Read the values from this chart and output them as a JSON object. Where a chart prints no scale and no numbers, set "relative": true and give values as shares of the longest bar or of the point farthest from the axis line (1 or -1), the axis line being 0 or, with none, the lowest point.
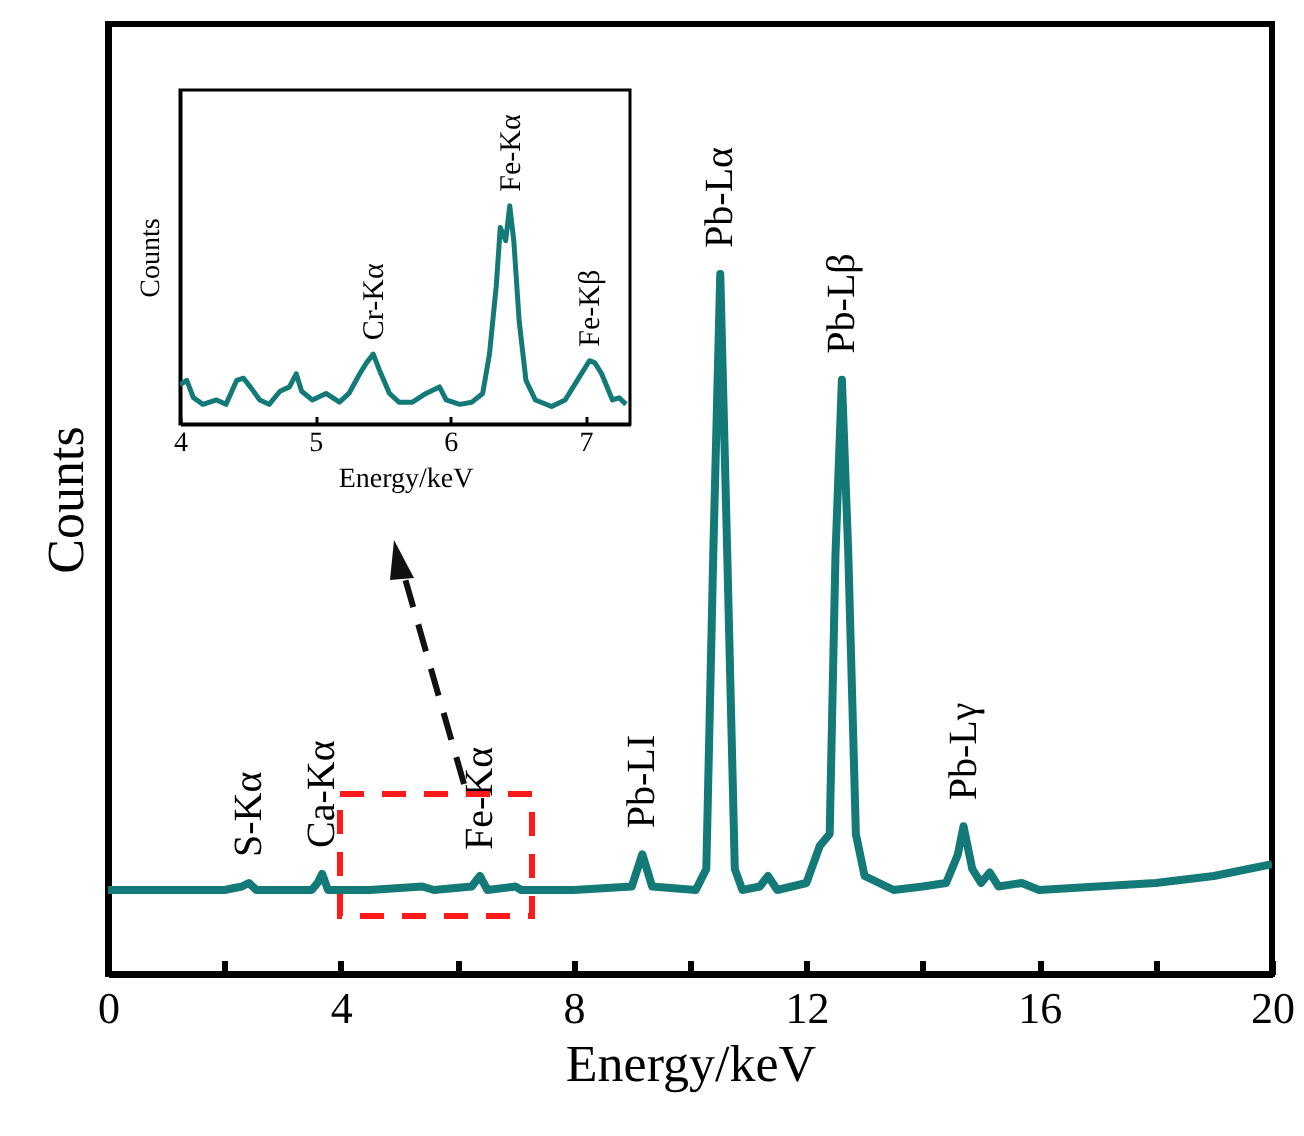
{
  "chart_data": [
    {
      "type": "line",
      "xlabel": "Energy/keV",
      "ylabel": "Counts",
      "relative": true,
      "color": "#137a78",
      "xlim": [
        0,
        20
      ],
      "xticks": [
        0,
        {
          "value": 2,
          "label": null
        },
        4,
        {
          "value": 6,
          "label": null
        },
        8,
        {
          "value": 10,
          "label": null
        },
        12,
        {
          "value": 14,
          "label": null
        },
        16,
        {
          "value": 18,
          "label": null
        },
        20
      ],
      "x": [
        0,
        1,
        2,
        2.3,
        2.42,
        2.55,
        3.5,
        3.6,
        3.68,
        3.78,
        4.5,
        5.4,
        5.6,
        6.25,
        6.39,
        6.52,
        7.0,
        7.1,
        8,
        9.0,
        9.18,
        9.35,
        10.1,
        10.28,
        10.4,
        10.52,
        10.64,
        10.77,
        10.9,
        11.2,
        11.34,
        11.5,
        12.0,
        12.23,
        12.4,
        12.5,
        12.61,
        12.72,
        12.85,
        13.0,
        13.5,
        14.0,
        14.4,
        14.6,
        14.7,
        14.85,
        15.0,
        15.15,
        15.3,
        15.7,
        16,
        17,
        18,
        19,
        20
      ],
      "values": [
        0.12,
        0.12,
        0.12,
        0.125,
        0.13,
        0.12,
        0.12,
        0.13,
        0.143,
        0.12,
        0.12,
        0.125,
        0.12,
        0.125,
        0.14,
        0.12,
        0.125,
        0.12,
        0.12,
        0.125,
        0.171,
        0.125,
        0.12,
        0.15,
        0.6,
        1.0,
        0.6,
        0.15,
        0.12,
        0.125,
        0.14,
        0.12,
        0.13,
        0.183,
        0.2,
        0.6,
        0.849,
        0.6,
        0.2,
        0.14,
        0.12,
        0.125,
        0.13,
        0.17,
        0.211,
        0.15,
        0.13,
        0.145,
        0.125,
        0.13,
        0.12,
        0.125,
        0.13,
        0.14,
        0.157
      ],
      "annotations": [
        {
          "text": "S-Kα",
          "x": 2.42,
          "y": 0.13
        },
        {
          "text": "Ca-Kα",
          "x": 3.68,
          "y": 0.143
        },
        {
          "text": "Fe-Kα",
          "x": 6.39,
          "y": 0.14
        },
        {
          "text": "Pb-LI",
          "x": 9.18,
          "y": 0.171
        },
        {
          "text": "Pb-Lα",
          "x": 10.52,
          "y": 1.0
        },
        {
          "text": "Pb-Lβ",
          "x": 12.61,
          "y": 0.849
        },
        {
          "text": "Pb-Lγ",
          "x": 14.7,
          "y": 0.211
        }
      ]
    },
    {
      "type": "line",
      "xlabel": "Energy/keV",
      "ylabel": "Counts",
      "relative": true,
      "color": "#137a78",
      "xlim": [
        4,
        7.33
      ],
      "xticks": [
        4,
        5,
        6,
        7
      ],
      "x": [
        4.0,
        4.05,
        4.1,
        4.17,
        4.27,
        4.34,
        4.42,
        4.47,
        4.52,
        4.59,
        4.66,
        4.74,
        4.81,
        4.86,
        4.9,
        4.98,
        5.08,
        5.18,
        5.25,
        5.33,
        5.38,
        5.43,
        5.48,
        5.55,
        5.62,
        5.72,
        5.82,
        5.92,
        5.97,
        6.07,
        6.16,
        6.24,
        6.29,
        6.34,
        6.37,
        6.41,
        6.44,
        6.47,
        6.51,
        6.56,
        6.63,
        6.75,
        6.85,
        6.95,
        7.03,
        7.07,
        7.12,
        7.2,
        7.25,
        7.3
      ],
      "values": [
        0.18,
        0.2,
        0.12,
        0.09,
        0.11,
        0.09,
        0.2,
        0.21,
        0.17,
        0.11,
        0.09,
        0.15,
        0.17,
        0.23,
        0.15,
        0.11,
        0.14,
        0.1,
        0.14,
        0.23,
        0.28,
        0.32,
        0.24,
        0.14,
        0.1,
        0.1,
        0.14,
        0.17,
        0.11,
        0.09,
        0.1,
        0.14,
        0.32,
        0.63,
        0.9,
        0.84,
        1.0,
        0.84,
        0.47,
        0.2,
        0.11,
        0.08,
        0.11,
        0.21,
        0.29,
        0.28,
        0.23,
        0.11,
        0.12,
        0.09
      ],
      "annotations": [
        {
          "text": "Cr-Kα",
          "x": 5.43,
          "y": 0.32
        },
        {
          "text": "Fe-Kα",
          "x": 6.44,
          "y": 1.0
        },
        {
          "text": "Fe-Kβ",
          "x": 7.03,
          "y": 0.29
        }
      ]
    }
  ]
}
